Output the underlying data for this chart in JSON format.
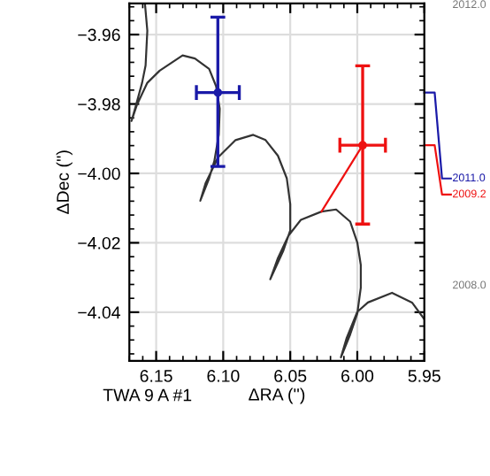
{
  "chart_data": {
    "type": "line",
    "xlabel": "ΔRA ('')",
    "ylabel": "ΔDec ('')",
    "xlim": [
      6.17,
      5.95
    ],
    "ylim": [
      -4.054,
      -3.951
    ],
    "xticks": [
      6.15,
      {
        "value": 6.1,
        "label": "6.10"
      },
      6.05,
      {
        "value": 6.0,
        "label": "6.00"
      },
      5.95
    ],
    "yticks": [
      -4.04,
      -4.02,
      {
        "value": -4.0,
        "label": "−4.00"
      },
      -3.98,
      -3.96
    ],
    "grid": true,
    "legend": false,
    "marker": "none",
    "annotations": [
      "2012.0",
      "2008.0",
      "TWA 9 A #1"
    ],
    "series": [
      {
        "color": "#333333",
        "line_style": "solid",
        "x": [
          6.1583,
          6.1566,
          6.1579,
          6.1605,
          6.1658,
          6.1684,
          6.1645,
          6.1566,
          6.1474,
          6.1303,
          6.1211,
          6.1105,
          6.1053,
          6.1026,
          6.1033,
          6.1066,
          6.1105,
          6.1171,
          6.1132,
          6.1039,
          6.0908,
          6.0776,
          6.0684,
          6.0592,
          6.0526,
          6.05,
          6.05,
          6.0553,
          6.0649,
          6.0592,
          6.0513,
          6.0421,
          6.0267,
          6.0158,
          6.0053,
          6.0,
          5.9974,
          5.9974,
          6.0,
          6.0053,
          6.0122,
          6.0079,
          6.0,
          5.9921,
          5.9741,
          5.9592,
          5.95
        ],
        "values": [
          -3.9514,
          -3.9589,
          -3.9689,
          -3.9739,
          -3.9814,
          -3.9849,
          -3.9804,
          -3.9739,
          -3.9704,
          -3.966,
          -3.9669,
          -3.9699,
          -3.9749,
          -3.9814,
          -3.9889,
          -3.9964,
          -4.0014,
          -4.0079,
          -4.0029,
          -3.9954,
          -3.9904,
          -3.9889,
          -3.9904,
          -3.9949,
          -4.0014,
          -4.0089,
          -4.0164,
          -4.0224,
          -4.0305,
          -4.0244,
          -4.0179,
          -4.0134,
          -4.011,
          -4.0104,
          -4.0139,
          -4.0199,
          -4.0264,
          -4.0329,
          -4.0404,
          -4.0464,
          -4.053,
          -4.0474,
          -4.0399,
          -4.0372,
          -4.0344,
          -4.0372,
          -4.042
        ]
      },
      {
        "color": "#ee1111",
        "line_style": "solid",
        "x": [
          5.996,
          6.0267
        ],
        "values": [
          -3.9919,
          -4.011
        ]
      },
      {
        "type": "scatter",
        "name": "2011.0",
        "color": "#1a1aa8",
        "x": [
          6.104
        ],
        "values": [
          -3.9767
        ],
        "errors": [
          [
            -3.998,
            -3.955
          ]
        ],
        "xerrors": [
          [
            6.088,
            6.12
          ]
        ]
      },
      {
        "type": "scatter",
        "name": "2009.2",
        "color": "#ee1111",
        "x": [
          5.996
        ],
        "values": [
          -3.9919
        ],
        "errors": [
          [
            -4.0146,
            -3.969
          ]
        ],
        "xerrors": [
          [
            5.979,
            6.013
          ]
        ]
      }
    ]
  }
}
